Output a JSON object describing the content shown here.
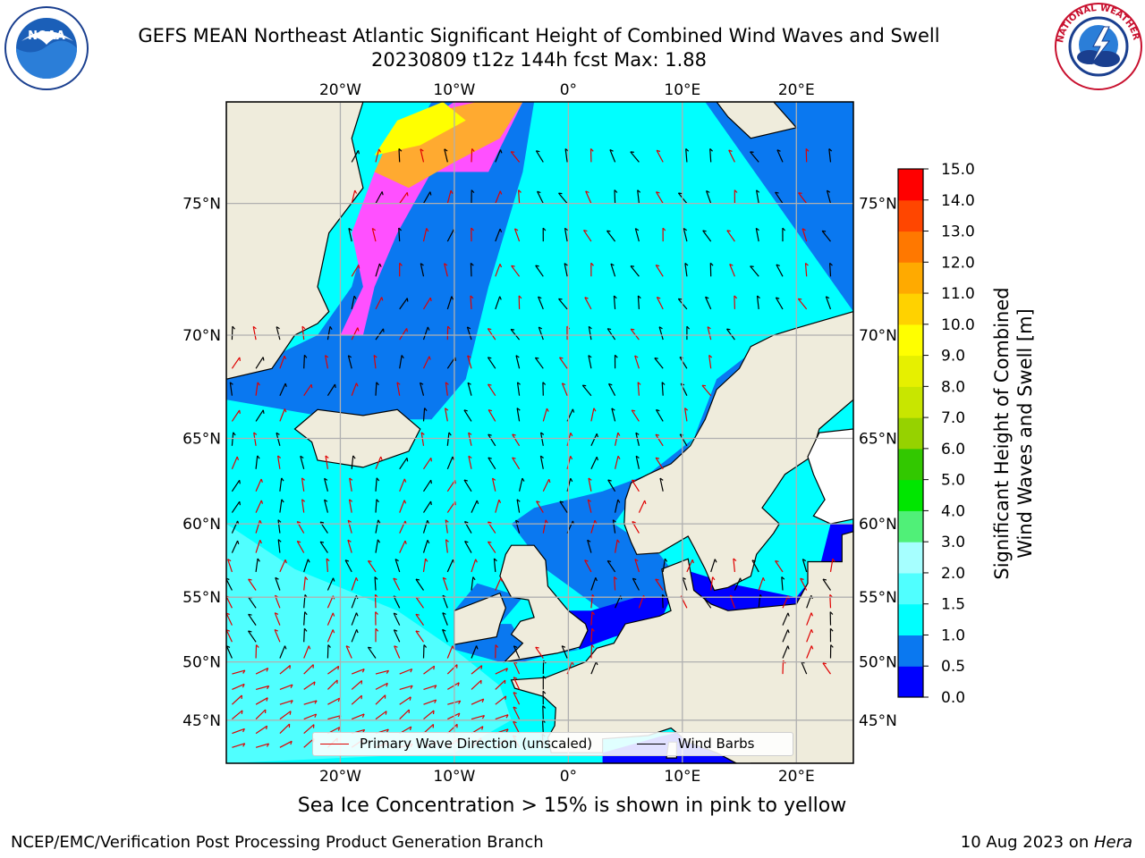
{
  "header": {
    "title_line1": "GEFS MEAN Northeast Atlantic Significant Height of Combined Wind Waves and Swell",
    "title_line2": "20230809 t12z 144h fcst   Max: 1.88"
  },
  "logos": {
    "left": {
      "name": "noaa-logo",
      "text": "NOAA",
      "ring_text": "NATIONAL OCEANIC AND ATMOSPHERIC ADMINISTRATION · U.S. DEPARTMENT OF COMMERCE"
    },
    "right": {
      "name": "nws-logo",
      "ring_text": "NATIONAL WEATHER SERVICE"
    }
  },
  "map": {
    "lon_range": [
      -30,
      25
    ],
    "lat_range": [
      41,
      78
    ],
    "projection": "mercator",
    "lon_ticks": [
      {
        "value": -20,
        "label": "20°W"
      },
      {
        "value": -10,
        "label": "10°W"
      },
      {
        "value": 0,
        "label": "0°"
      },
      {
        "value": 10,
        "label": "10°E"
      },
      {
        "value": 20,
        "label": "20°E"
      }
    ],
    "lat_ticks": [
      {
        "value": 45,
        "label": "45°N"
      },
      {
        "value": 50,
        "label": "50°N"
      },
      {
        "value": 55,
        "label": "55°N"
      },
      {
        "value": 60,
        "label": "60°N"
      },
      {
        "value": 65,
        "label": "65°N"
      },
      {
        "value": 70,
        "label": "70°N"
      },
      {
        "value": 75,
        "label": "75°N"
      }
    ],
    "grid": true,
    "colors": {
      "land": "#efecdc",
      "ice_free_land": "#ffffff",
      "wave_barb": "#e00000",
      "wind_barb": "#000000"
    }
  },
  "colorbar": {
    "label_line1": "Significant Height of Combined",
    "label_line2": "Wind Waves and Swell [m]",
    "levels": [
      0.0,
      0.5,
      1.0,
      1.5,
      2.0,
      3.0,
      4.0,
      5.0,
      6.0,
      7.0,
      8.0,
      9.0,
      10.0,
      11.0,
      12.0,
      13.0,
      14.0,
      15.0
    ],
    "tick_labels": [
      "0.0",
      "0.5",
      "1.0",
      "1.5",
      "2.0",
      "3.0",
      "4.0",
      "5.0",
      "6.0",
      "7.0",
      "8.0",
      "9.0",
      "10.0",
      "11.0",
      "12.0",
      "13.0",
      "14.0",
      "15.0"
    ],
    "colors": [
      "#0000ff",
      "#0a78f0",
      "#00ffff",
      "#50ffff",
      "#a6ffff",
      "#50f078",
      "#00e600",
      "#32c800",
      "#96d200",
      "#c8e600",
      "#e6f000",
      "#ffff00",
      "#ffd200",
      "#ffaa00",
      "#ff7800",
      "#ff4600",
      "#ff0000"
    ]
  },
  "legend": {
    "wave_label": "Primary Wave Direction (unscaled)",
    "wind_label": "Wind Barbs"
  },
  "footer": {
    "subtitle": "Sea Ice Concentration > 15% is shown in pink to yellow",
    "left": "NCEP/EMC/Verification Post Processing Product Generation Branch",
    "right_prefix": "10 Aug 2023 on ",
    "right_host": "Hera"
  }
}
